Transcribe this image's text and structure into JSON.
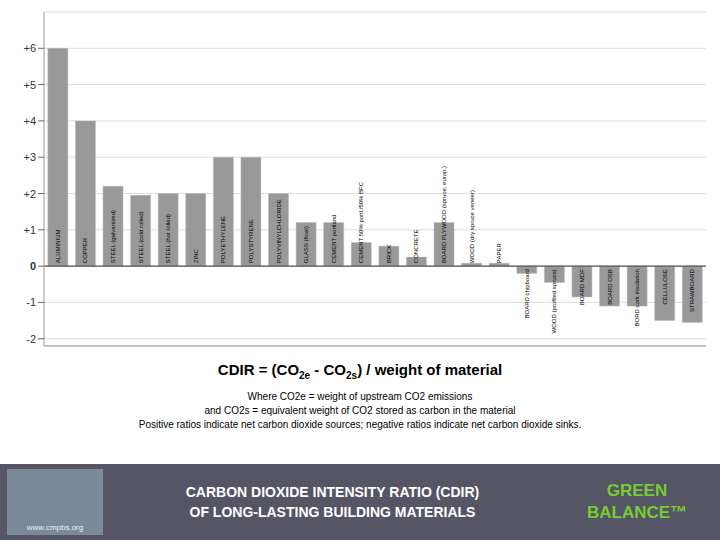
{
  "chart_data": {
    "type": "bar",
    "title": [
      "CARBON DIOXIDE INTENSITY RATIO (CDIR)",
      "OF LONG-LASTING BUILDING MATERIALS"
    ],
    "subtitle": [
      "Where CO2e = weight of upstream CO2 emissions",
      "and CO2s = equivalent weight of CO2 stored as carbon in the material",
      "Positive ratios indicate net carbon dioxide sources; negative ratios indicate net carbon dioxide sinks."
    ],
    "annotations": [
      "CDIR = (CO2e - CO2s) / weight of material",
      "GREEN",
      "BALANCE™",
      "www.cmpbs.org"
    ],
    "categories": [
      "ALUMINIUM",
      "COPPER",
      "STEEL (galvanized)",
      "STEEL (cold rolled)",
      "STEEL (hot rolled)",
      "ZINC",
      "POLYETHYLENE",
      "POLYSTYRENE",
      "POLYVINYLCHLORIDE",
      "GLASS (float)",
      "CEMENT portland",
      "CEMENT 50% portl./50% BFC",
      "BRICK",
      "CONCRETE",
      "BOARD PLYWOOD (spruce, europ.)",
      "WOOD (dry spruce veneer)",
      "PAPER",
      "BOARD chipboard",
      "WOOD (profiled spruce)",
      "BOARD MDF",
      "BOARD OSB",
      "BORD cork insulation",
      "CELLULOSE",
      "STRAWBOARD"
    ],
    "values": [
      6.0,
      4.0,
      2.2,
      1.95,
      2.0,
      2.0,
      3.0,
      3.0,
      2.0,
      1.2,
      1.2,
      0.65,
      0.55,
      0.25,
      1.2,
      0.08,
      0.08,
      -0.2,
      -0.45,
      -0.85,
      -1.1,
      -1.1,
      -1.5,
      -1.55
    ],
    "color": "#999999",
    "ylim": [
      -2.2,
      7.0
    ],
    "yticks": [
      -2,
      -1,
      0,
      {
        "value": 1,
        "label": "+1"
      },
      {
        "value": 2,
        "label": "+2"
      },
      {
        "value": 3,
        "label": "+3"
      },
      {
        "value": 4,
        "label": "+4"
      },
      {
        "value": 5,
        "label": "+5"
      },
      {
        "value": 6,
        "label": "+6"
      }
    ],
    "grid": true
  }
}
